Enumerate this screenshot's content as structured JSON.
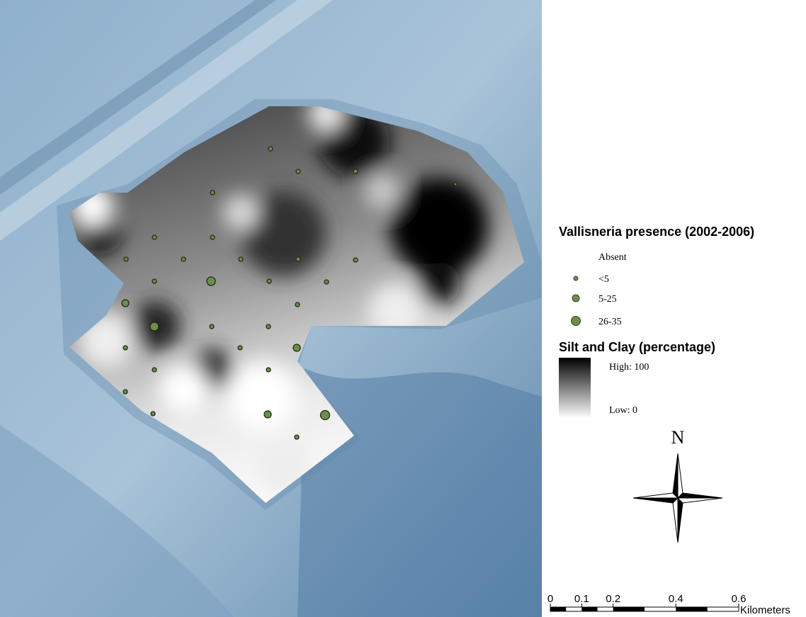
{
  "legend": {
    "presence_title": "Vallisneria presence (2002-2006)",
    "presence_classes": [
      "Absent",
      "<5",
      "5-25",
      "26-35"
    ],
    "silt_title": "Silt and Clay (percentage)",
    "silt_high": "High: 100",
    "silt_low": "Low: 0"
  },
  "north_arrow": "N",
  "scale_bar": {
    "ticks": [
      0,
      0.1,
      0.2,
      0.4,
      0.6
    ],
    "unit": "Kilometers"
  }
}
